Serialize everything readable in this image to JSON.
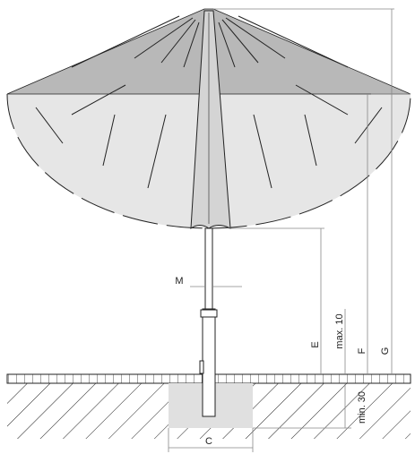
{
  "dimensions": [
    {
      "label": "M"
    },
    {
      "label": "E"
    },
    {
      "label": "max. 10"
    },
    {
      "label": "F"
    },
    {
      "label": "G"
    },
    {
      "label": "min. 30"
    },
    {
      "label": "C"
    }
  ]
}
